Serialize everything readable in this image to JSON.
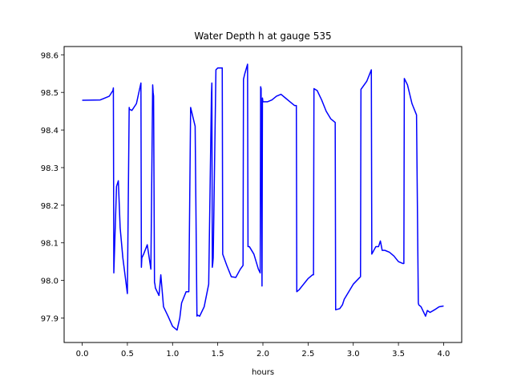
{
  "chart_data": {
    "type": "line",
    "title": "Water Depth h at gauge 535",
    "xlabel": "hours",
    "ylabel": "",
    "xlim": [
      -0.2,
      4.2
    ],
    "ylim": [
      97.835,
      98.622
    ],
    "xticks": [
      0.0,
      0.5,
      1.0,
      1.5,
      2.0,
      2.5,
      3.0,
      3.5,
      4.0
    ],
    "xtick_labels": [
      "0.0",
      "0.5",
      "1.0",
      "1.5",
      "2.0",
      "2.5",
      "3.0",
      "3.5",
      "4.0"
    ],
    "yticks": [
      97.9,
      98.0,
      98.1,
      98.2,
      98.3,
      98.4,
      98.5,
      98.6
    ],
    "ytick_labels": [
      "97.9",
      "98.0",
      "98.1",
      "98.2",
      "98.3",
      "98.4",
      "98.5",
      "98.6"
    ],
    "grid": false,
    "series": [
      {
        "color": "#0000ff",
        "x": [
          0.0,
          0.2,
          0.3,
          0.34,
          0.345,
          0.35,
          0.38,
          0.4,
          0.42,
          0.45,
          0.5,
          0.52,
          0.525,
          0.55,
          0.6,
          0.65,
          0.655,
          0.66,
          0.68,
          0.72,
          0.76,
          0.78,
          0.785,
          0.79,
          0.8,
          0.805,
          0.81,
          0.85,
          0.87,
          0.9,
          0.95,
          1.0,
          1.05,
          1.08,
          1.1,
          1.15,
          1.18,
          1.2,
          1.205,
          1.25,
          1.27,
          1.275,
          1.3,
          1.35,
          1.4,
          1.43,
          1.435,
          1.44,
          1.445,
          1.45,
          1.48,
          1.5,
          1.55,
          1.555,
          1.6,
          1.65,
          1.7,
          1.75,
          1.78,
          1.785,
          1.8,
          1.83,
          1.835,
          1.85,
          1.9,
          1.95,
          1.97,
          1.975,
          1.98,
          1.99,
          1.995,
          2.0,
          2.05,
          2.1,
          2.15,
          2.2,
          2.25,
          2.3,
          2.35,
          2.37,
          2.375,
          2.4,
          2.45,
          2.5,
          2.55,
          2.56,
          2.565,
          2.6,
          2.65,
          2.7,
          2.75,
          2.8,
          2.805,
          2.85,
          2.88,
          2.9,
          2.95,
          3.0,
          3.08,
          3.085,
          3.15,
          3.2,
          3.205,
          3.25,
          3.28,
          3.3,
          3.32,
          3.35,
          3.4,
          3.45,
          3.5,
          3.55,
          3.56,
          3.565,
          3.6,
          3.65,
          3.7,
          3.72,
          3.725,
          3.75,
          3.8,
          3.82,
          3.85,
          3.9,
          3.95,
          4.0
        ],
        "y": [
          98.479,
          98.48,
          98.49,
          98.505,
          98.512,
          98.02,
          98.25,
          98.265,
          98.14,
          98.06,
          97.965,
          98.46,
          98.455,
          98.452,
          98.47,
          98.525,
          98.035,
          98.06,
          98.07,
          98.095,
          98.03,
          98.52,
          98.5,
          98.49,
          97.995,
          97.99,
          97.98,
          97.96,
          98.015,
          97.93,
          97.905,
          97.878,
          97.868,
          97.9,
          97.94,
          97.97,
          97.97,
          98.46,
          98.455,
          98.41,
          97.905,
          97.908,
          97.905,
          97.93,
          97.99,
          98.49,
          98.525,
          98.035,
          98.045,
          98.06,
          98.56,
          98.565,
          98.565,
          98.07,
          98.04,
          98.01,
          98.008,
          98.03,
          98.04,
          98.535,
          98.55,
          98.575,
          98.09,
          98.09,
          98.07,
          98.03,
          98.02,
          98.515,
          98.51,
          97.985,
          98.485,
          98.475,
          98.475,
          98.48,
          98.49,
          98.495,
          98.485,
          98.475,
          98.465,
          98.465,
          97.97,
          97.975,
          97.99,
          98.005,
          98.015,
          98.015,
          98.51,
          98.505,
          98.48,
          98.45,
          98.43,
          98.42,
          97.922,
          97.925,
          97.935,
          97.95,
          97.97,
          97.99,
          98.01,
          98.508,
          98.53,
          98.56,
          98.07,
          98.09,
          98.09,
          98.105,
          98.08,
          98.08,
          98.075,
          98.065,
          98.05,
          98.045,
          98.045,
          98.537,
          98.52,
          98.47,
          98.44,
          97.94,
          97.935,
          97.93,
          97.905,
          97.92,
          97.915,
          97.922,
          97.93,
          97.932
        ]
      }
    ]
  }
}
